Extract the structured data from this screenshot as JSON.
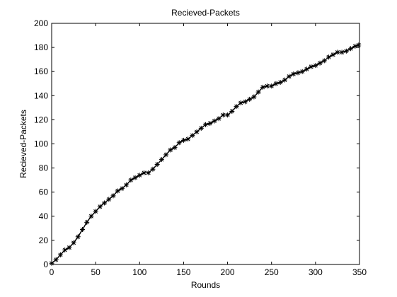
{
  "chart_data": {
    "type": "line",
    "title": "Recieved-Packets",
    "xlabel": "Rounds",
    "ylabel": "Recieved-Packets",
    "xlim": [
      0,
      350
    ],
    "ylim": [
      0,
      200
    ],
    "xticks": [
      0,
      50,
      100,
      150,
      200,
      250,
      300,
      350
    ],
    "yticks": [
      0,
      20,
      40,
      60,
      80,
      100,
      120,
      140,
      160,
      180,
      200
    ],
    "grid": false,
    "marker": "asterisk",
    "line_color": "#000000",
    "series": [
      {
        "x": [
          0,
          5,
          10,
          15,
          20,
          25,
          30,
          35,
          40,
          45,
          50,
          55,
          60,
          65,
          70,
          75,
          80,
          85,
          90,
          95,
          100,
          105,
          110,
          115,
          120,
          125,
          130,
          135,
          140,
          145,
          150,
          155,
          160,
          165,
          170,
          175,
          180,
          185,
          190,
          195,
          200,
          205,
          210,
          215,
          220,
          225,
          230,
          235,
          240,
          245,
          250,
          255,
          260,
          265,
          270,
          275,
          280,
          285,
          290,
          295,
          300,
          305,
          310,
          315,
          320,
          325,
          330,
          335,
          340,
          345,
          349
        ],
        "y": [
          1,
          4,
          8,
          12,
          14,
          18,
          23,
          29,
          35,
          40,
          44,
          48,
          51,
          54,
          57,
          61,
          63,
          66,
          70,
          72,
          74,
          76,
          76,
          79,
          83,
          87,
          91,
          95,
          97,
          101,
          103,
          104,
          107,
          110,
          113,
          116,
          117,
          119,
          121,
          124,
          124,
          127,
          131,
          134,
          135,
          137,
          139,
          143,
          147,
          148,
          148,
          150,
          151,
          153,
          156,
          158,
          159,
          160,
          162,
          164,
          165,
          167,
          169,
          172,
          174,
          176,
          176,
          177,
          179,
          181,
          182
        ]
      }
    ]
  }
}
